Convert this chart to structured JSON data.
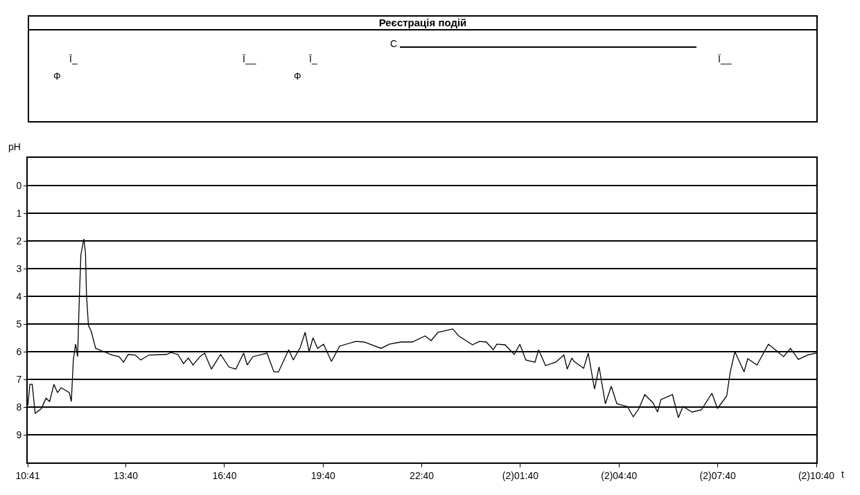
{
  "chart_data": [
    {
      "type": "other",
      "title": "Реєстрація подій",
      "annotations": [
        "Ф",
        "Ї_",
        "Ї__",
        "Ф",
        "Ї_",
        "С",
        "Ї__"
      ]
    },
    {
      "type": "line",
      "ylabel": "pH",
      "xlabel": "t",
      "xlim": [
        10.6833,
        34.6667
      ],
      "ylim": [
        10,
        -1
      ],
      "yticks": [
        0,
        1,
        2,
        3,
        4,
        5,
        6,
        7,
        8,
        9
      ],
      "xticks": [
        {
          "value": 10.6833,
          "label": "10:41"
        },
        {
          "value": 13.6667,
          "label": "13:40"
        },
        {
          "value": 16.6667,
          "label": "16:40"
        },
        {
          "value": 19.6667,
          "label": "19:40"
        },
        {
          "value": 22.6667,
          "label": "22:40"
        },
        {
          "value": 25.6667,
          "label": "(2)01:40"
        },
        {
          "value": 28.6667,
          "label": "(2)04:40"
        },
        {
          "value": 31.6667,
          "label": "(2)07:40"
        },
        {
          "value": 34.6667,
          "label": "(2)10:40"
        }
      ],
      "grid": "y",
      "marker": "none",
      "line_style": "solid",
      "series": [
        {
          "color": "#000000",
          "x": [
            10.69,
            10.75,
            10.82,
            10.91,
            11.1,
            11.24,
            11.35,
            11.48,
            11.59,
            11.7,
            11.95,
            12.01,
            12.07,
            12.14,
            12.2,
            12.25,
            12.3,
            12.39,
            12.44,
            12.47,
            12.53,
            12.61,
            12.75,
            13.0,
            13.25,
            13.46,
            13.6,
            13.74,
            13.95,
            14.12,
            14.37,
            14.9,
            15.04,
            15.25,
            15.42,
            15.57,
            15.71,
            15.92,
            16.06,
            16.27,
            16.55,
            16.8,
            17.01,
            17.25,
            17.36,
            17.53,
            17.96,
            18.17,
            18.31,
            18.62,
            18.76,
            18.97,
            19.12,
            19.24,
            19.36,
            19.5,
            19.68,
            19.92,
            20.17,
            20.66,
            20.91,
            21.43,
            21.68,
            22.03,
            22.38,
            22.77,
            22.95,
            23.16,
            23.61,
            23.79,
            24.21,
            24.42,
            24.63,
            24.84,
            24.95,
            25.2,
            25.48,
            25.65,
            25.83,
            26.11,
            26.22,
            26.43,
            26.74,
            26.99,
            27.09,
            27.23,
            27.3,
            27.59,
            27.73,
            27.92,
            28.06,
            28.25,
            28.43,
            28.6,
            28.92,
            29.1,
            29.27,
            29.45,
            29.7,
            29.84,
            29.94,
            30.29,
            30.47,
            30.61,
            30.89,
            31.17,
            31.49,
            31.66,
            31.94,
            32.05,
            32.19,
            32.47,
            32.58,
            32.86,
            33.0,
            33.21,
            33.49,
            33.67,
            33.88,
            34.12,
            34.4,
            34.66
          ],
          "values": [
            7.93,
            7.18,
            7.18,
            8.23,
            8.05,
            7.68,
            7.8,
            7.18,
            7.48,
            7.3,
            7.48,
            7.8,
            6.3,
            5.73,
            6.18,
            4.18,
            2.5,
            1.93,
            2.43,
            3.93,
            5.05,
            5.25,
            5.88,
            6.0,
            6.12,
            6.18,
            6.38,
            6.1,
            6.12,
            6.3,
            6.12,
            6.1,
            6.03,
            6.1,
            6.43,
            6.23,
            6.48,
            6.18,
            6.05,
            6.63,
            6.1,
            6.55,
            6.63,
            6.05,
            6.48,
            6.18,
            6.05,
            6.73,
            6.73,
            5.93,
            6.3,
            5.85,
            5.3,
            6.0,
            5.5,
            5.88,
            5.73,
            6.35,
            5.8,
            5.63,
            5.65,
            5.88,
            5.73,
            5.65,
            5.65,
            5.43,
            5.6,
            5.3,
            5.18,
            5.43,
            5.75,
            5.63,
            5.65,
            5.93,
            5.73,
            5.75,
            6.1,
            5.73,
            6.3,
            6.38,
            5.93,
            6.5,
            6.38,
            6.12,
            6.63,
            6.23,
            6.35,
            6.6,
            6.05,
            7.35,
            6.55,
            7.88,
            7.25,
            7.88,
            7.98,
            8.35,
            8.05,
            7.55,
            7.85,
            8.18,
            7.73,
            7.55,
            8.38,
            7.98,
            8.18,
            8.1,
            7.5,
            8.05,
            7.6,
            6.73,
            6.0,
            6.73,
            6.25,
            6.48,
            6.18,
            5.73,
            6.0,
            6.18,
            5.88,
            6.28,
            6.12,
            6.05
          ]
        }
      ]
    }
  ]
}
